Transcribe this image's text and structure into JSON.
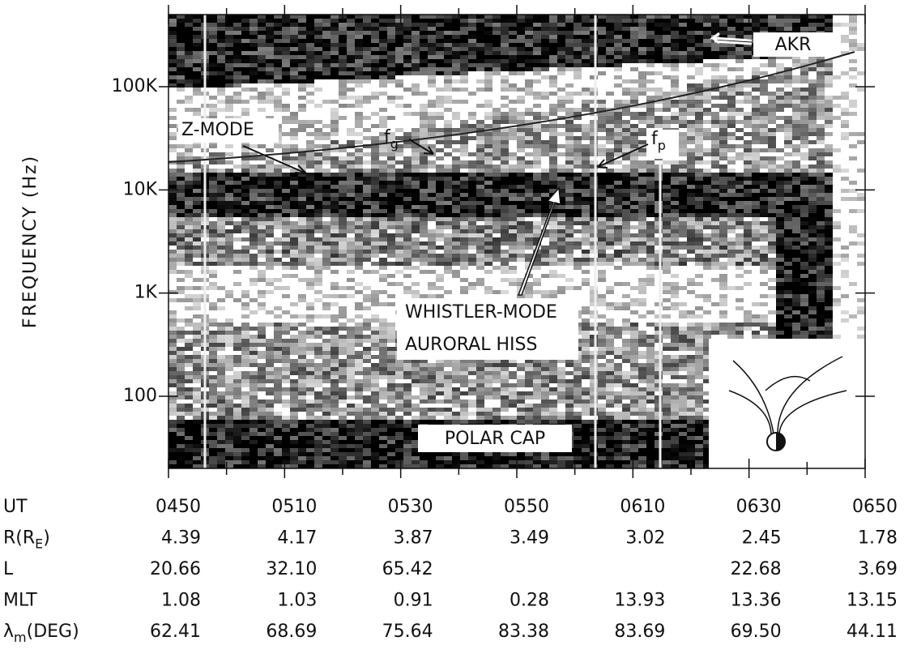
{
  "chart_data": {
    "type": "spectrogram",
    "y_label": "FREQUENCY (Hz)",
    "yscale": "log",
    "ylim": [
      20,
      500000
    ],
    "yticks": [
      100,
      {
        "value": 1000,
        "label": "1K"
      },
      {
        "value": 10000,
        "label": "10K"
      },
      {
        "value": 100000,
        "label": "100K"
      }
    ],
    "annotations": {
      "akr": "AKR",
      "z_mode": "Z-MODE",
      "fg": [
        "f",
        "g"
      ],
      "fp": [
        "f",
        "p"
      ],
      "whistler": [
        "WHISTLER-MODE",
        "AURORAL HISS"
      ],
      "polar_cap": "POLAR CAP"
    },
    "ephemeris": [
      {
        "label": [
          "UT"
        ],
        "values": [
          "0450",
          "0510",
          "0530",
          "0550",
          "0610",
          "0630",
          "0650"
        ]
      },
      {
        "label": [
          "R(R",
          "E",
          ")"
        ],
        "values": [
          "4.39",
          "4.17",
          "3.87",
          "3.49",
          "3.02",
          "2.45",
          "1.78"
        ]
      },
      {
        "label": [
          "L"
        ],
        "values": [
          "20.66",
          "32.10",
          "65.42",
          null,
          null,
          "22.68",
          "3.69"
        ]
      },
      {
        "label": [
          "MLT"
        ],
        "values": [
          "1.08",
          "1.03",
          "0.91",
          "0.28",
          "13.93",
          "13.36",
          "13.15"
        ]
      },
      {
        "label": [
          "λ",
          "m",
          "(DEG)"
        ],
        "values": [
          "62.41",
          "68.69",
          "75.64",
          "83.38",
          "83.69",
          "69.50",
          "44.11"
        ]
      }
    ]
  }
}
